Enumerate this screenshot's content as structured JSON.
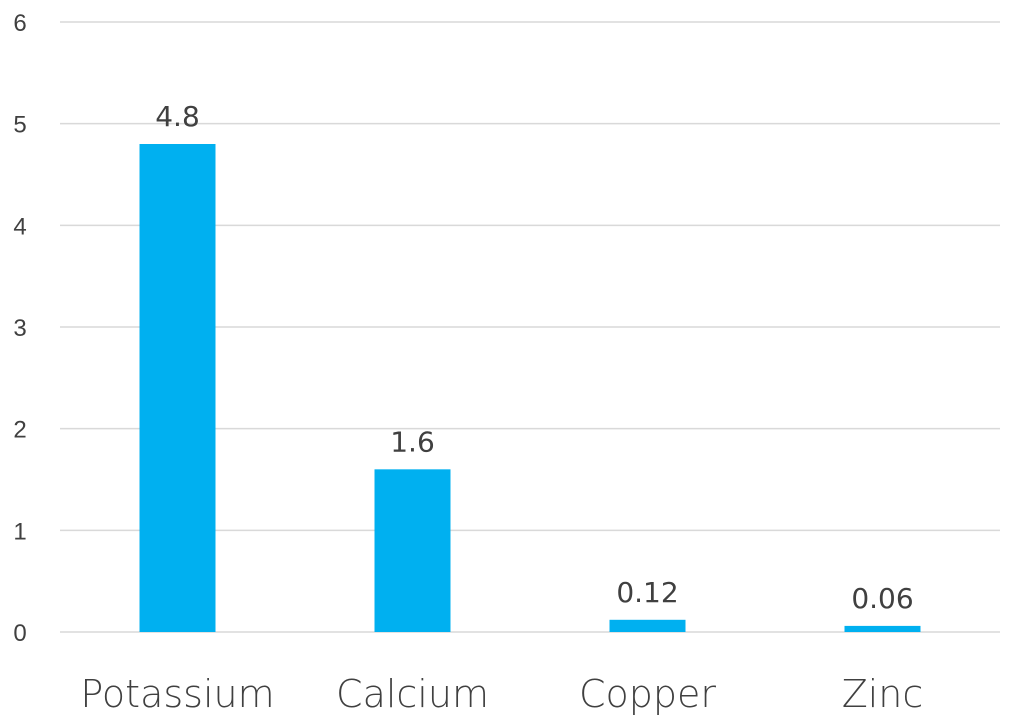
{
  "chart_data": {
    "type": "bar",
    "categories": [
      "Potassium",
      "Calcium",
      "Copper",
      "Zinc"
    ],
    "values": [
      4.8,
      1.6,
      0.12,
      0.06
    ],
    "data_labels": [
      "4.8",
      "1.6",
      "0.12",
      "0.06"
    ],
    "yticks": [
      "0",
      "1",
      "2",
      "3",
      "4",
      "5",
      "6"
    ],
    "ylim": [
      0,
      6
    ],
    "grid": true,
    "legend": "none",
    "bar_color": "#00b0f0",
    "gridline_color": "#d9d9d9",
    "text_color": "#404040"
  }
}
